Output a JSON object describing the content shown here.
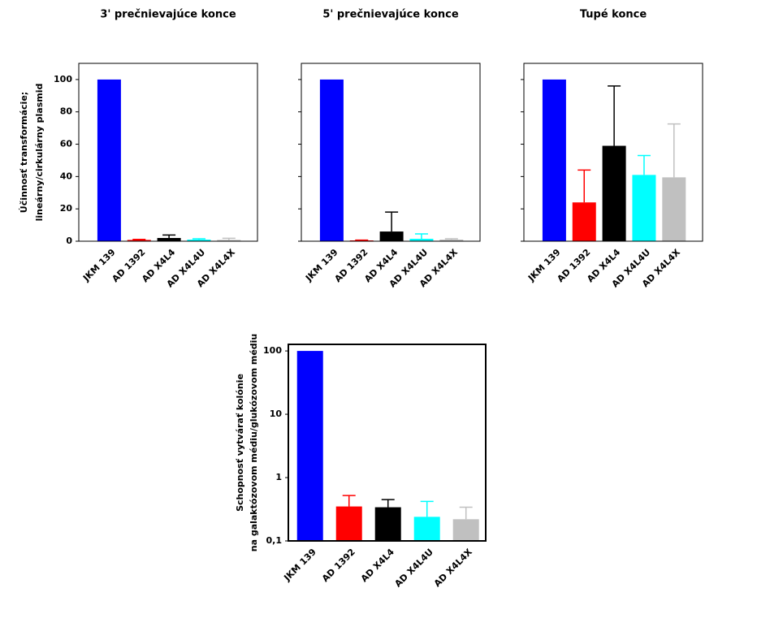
{
  "chart_data": [
    {
      "type": "bar",
      "title": "3' prečnievajúce konce",
      "ylabel": [
        "Účinnosť transformácie;",
        "lineárny/cirkulárny plasmid"
      ],
      "categories": [
        "JKM 139",
        "AD 1392",
        "AD X4L4",
        "AD X4L4U",
        "AD X4L4X"
      ],
      "values": [
        100,
        0.8,
        2,
        1,
        0.8
      ],
      "errors": [
        0,
        0.3,
        1.8,
        0.5,
        1
      ],
      "colors": [
        "#0000ff",
        "#ff0000",
        "#000000",
        "#00ffff",
        "#c0c0c0"
      ],
      "ylim": [
        0,
        110
      ],
      "yticks": [
        0,
        20,
        40,
        60,
        80,
        100
      ],
      "ytick_labels": true
    },
    {
      "type": "bar",
      "title": "5' prečnievajúce konce",
      "categories": [
        "JKM 139",
        "AD 1392",
        "AD X4L4",
        "AD X4L4U",
        "AD X4L4X"
      ],
      "values": [
        100,
        0.5,
        6,
        1.5,
        1
      ],
      "errors": [
        0,
        0.2,
        12,
        3,
        0.5
      ],
      "colors": [
        "#0000ff",
        "#ff0000",
        "#000000",
        "#00ffff",
        "#c0c0c0"
      ],
      "ylim": [
        0,
        110
      ],
      "yticks": [
        0,
        20,
        40,
        60,
        80,
        100
      ],
      "ytick_labels": false
    },
    {
      "type": "bar",
      "title": "Tupé konce",
      "categories": [
        "JKM 139",
        "AD 1392",
        "AD X4L4",
        "AD X4L4U",
        "AD X4L4X"
      ],
      "values": [
        100,
        24,
        59,
        41,
        39.5
      ],
      "errors": [
        0,
        20,
        37,
        12,
        33
      ],
      "colors": [
        "#0000ff",
        "#ff0000",
        "#000000",
        "#00ffff",
        "#c0c0c0"
      ],
      "ylim": [
        0,
        110
      ],
      "yticks": [
        0,
        20,
        40,
        60,
        80,
        100
      ],
      "ytick_labels": false
    },
    {
      "type": "bar",
      "log_scale": true,
      "ylabel": [
        "Schopnosť vytvárať kolónie",
        "na galaktózovom médiu/glukózovom médiu"
      ],
      "categories": [
        "JKM 139",
        "AD 1392",
        "AD X4L4",
        "AD X4L4U",
        "AD X4L4X"
      ],
      "values": [
        100,
        0.35,
        0.34,
        0.24,
        0.22
      ],
      "errors": [
        0,
        0.17,
        0.11,
        0.18,
        0.12
      ],
      "colors": [
        "#0000ff",
        "#ff0000",
        "#000000",
        "#00ffff",
        "#c0c0c0"
      ],
      "ylim": [
        0.1,
        127
      ],
      "yticks": [
        {
          "value": 0.1,
          "label": "0,1"
        },
        1,
        10,
        100
      ],
      "ytick_labels": true
    }
  ]
}
